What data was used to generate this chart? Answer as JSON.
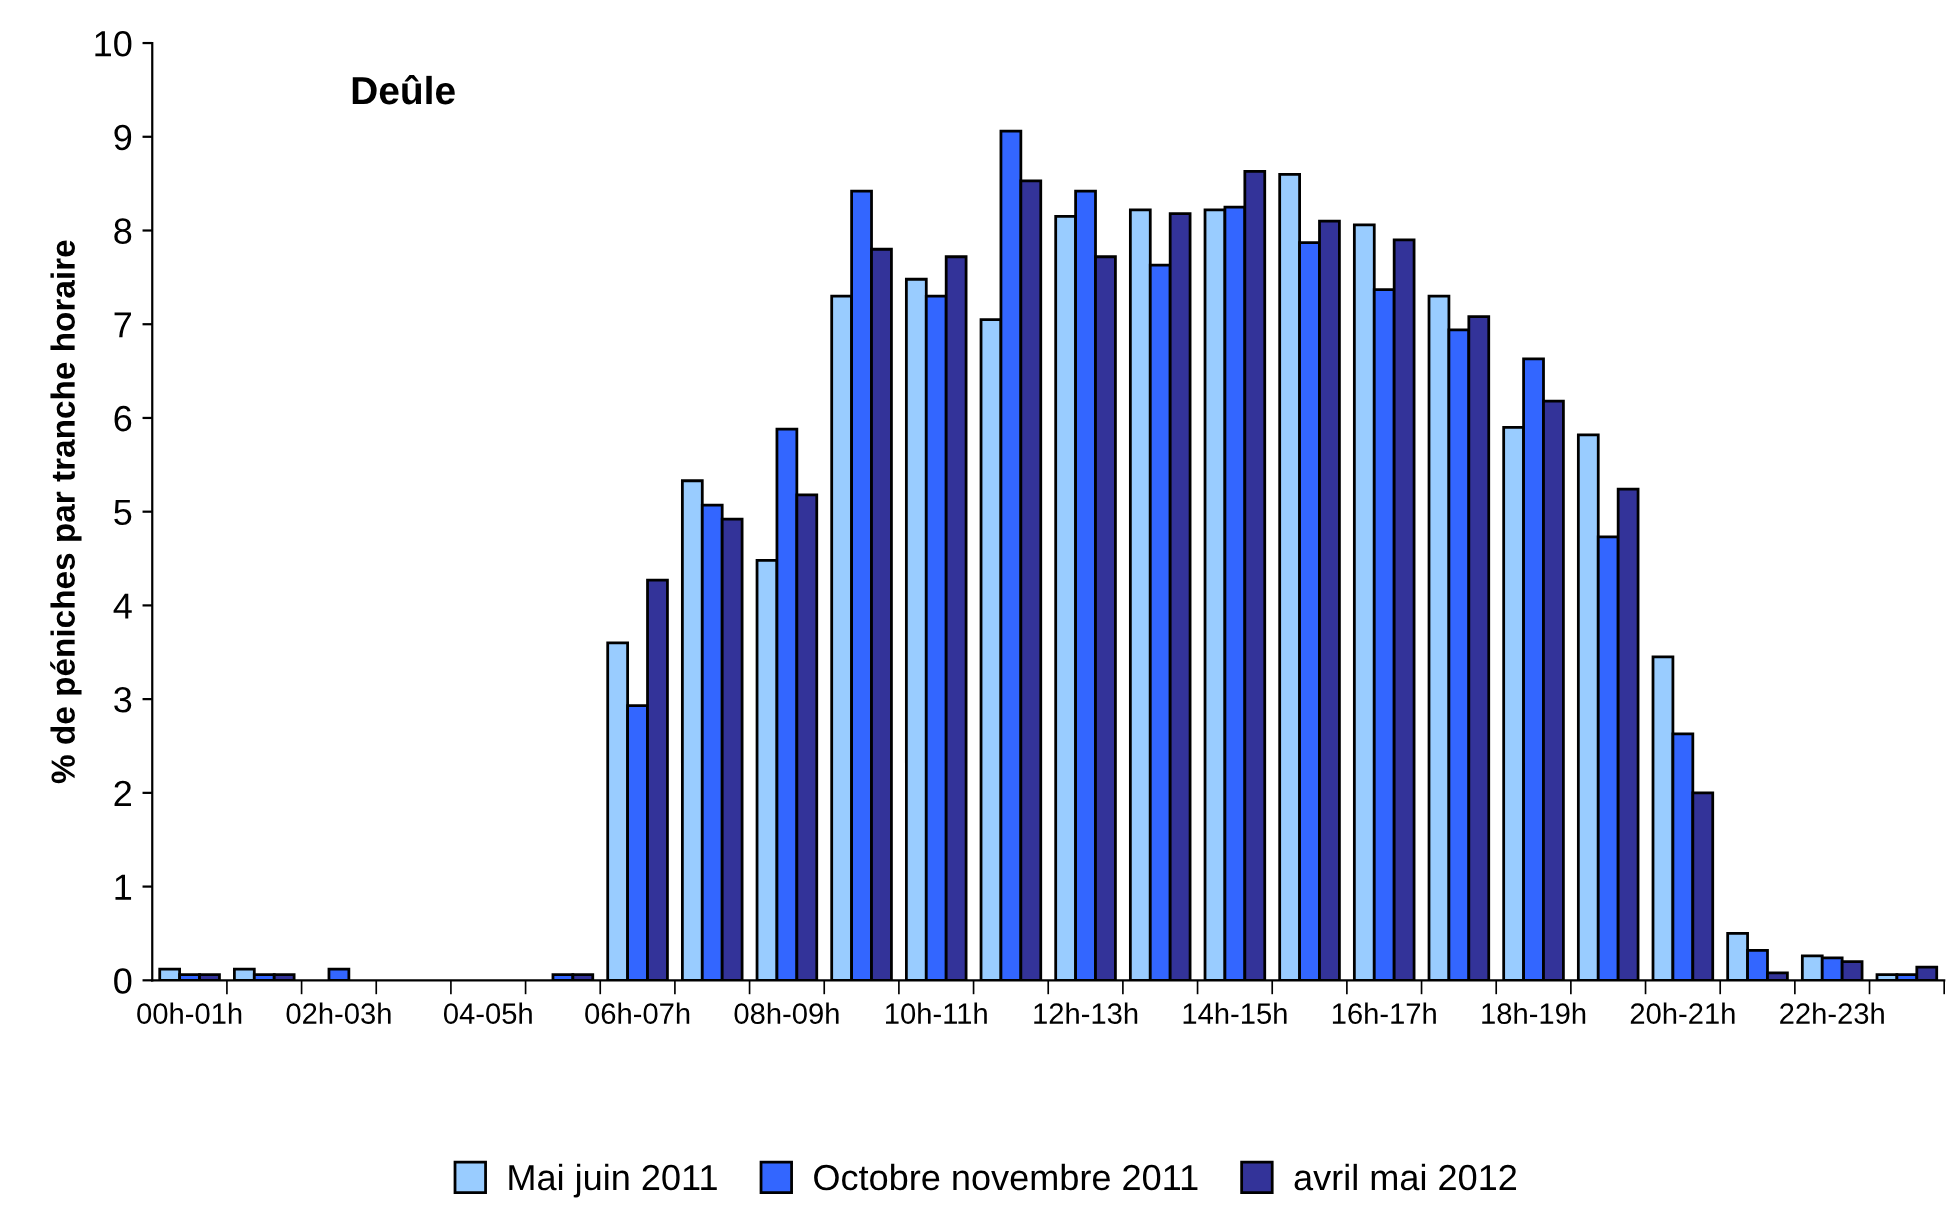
{
  "chart_data": {
    "type": "bar",
    "title": "Deûle",
    "ylabel": "% de péniches par tranche horaire",
    "categories": [
      "00h-01h",
      null,
      "02h-03h",
      null,
      "04-05h",
      null,
      "06h-07h",
      null,
      "08h-09h",
      null,
      "10h-11h",
      null,
      "12h-13h",
      null,
      "14h-15h",
      null,
      "16h-17h",
      null,
      "18h-19h",
      null,
      "20h-21h",
      null,
      "22h-23h",
      null
    ],
    "series": [
      {
        "name": "Mai juin 2011",
        "color": "#99ccff",
        "values": [
          0.12,
          0.12,
          null,
          null,
          null,
          null,
          3.6,
          5.33,
          4.48,
          7.3,
          7.48,
          7.05,
          8.15,
          8.22,
          8.22,
          8.6,
          8.06,
          7.3,
          5.9,
          5.82,
          3.45,
          0.5,
          0.26,
          0.06
        ]
      },
      {
        "name": "Octobre novembre 2011",
        "color": "#3366ff",
        "values": [
          0.06,
          0.06,
          0.12,
          null,
          null,
          0.06,
          2.93,
          5.07,
          5.88,
          8.42,
          7.3,
          9.06,
          8.42,
          7.63,
          8.25,
          7.87,
          7.37,
          6.94,
          6.63,
          4.73,
          2.63,
          0.32,
          0.24,
          0.06
        ]
      },
      {
        "name": "avril mai 2012",
        "color": "#333399",
        "values": [
          0.06,
          0.06,
          null,
          null,
          null,
          0.06,
          4.27,
          4.92,
          5.18,
          7.8,
          7.72,
          8.53,
          7.72,
          8.18,
          8.63,
          8.1,
          7.9,
          7.08,
          6.18,
          5.24,
          2.0,
          0.08,
          0.2,
          0.14
        ]
      }
    ],
    "ylim": [
      0,
      10
    ],
    "yticks": [
      0,
      1,
      2,
      3,
      4,
      5,
      6,
      7,
      8,
      9,
      10
    ],
    "grid": false,
    "legend": "bottom"
  }
}
